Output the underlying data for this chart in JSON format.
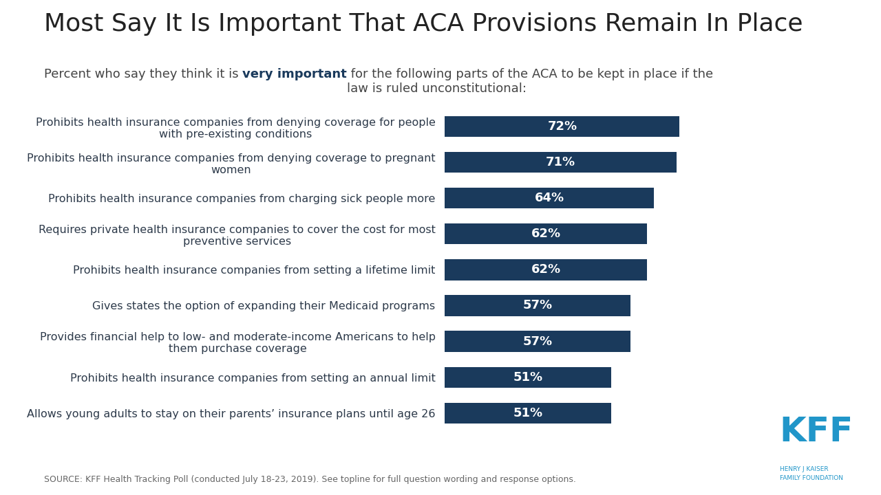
{
  "title": "Most Say It Is Important That ACA Provisions Remain In Place",
  "subtitle_plain": "Percent who say they think it is ",
  "subtitle_bold": "very important",
  "subtitle_rest": " for the following parts of the ACA to be kept in place if the\nlaw is ruled unconstitutional:",
  "categories": [
    "Prohibits health insurance companies from denying coverage for people\nwith pre-existing conditions",
    "Prohibits health insurance companies from denying coverage to pregnant\nwomen",
    "Prohibits health insurance companies from charging sick people more",
    "Requires private health insurance companies to cover the cost for most\npreventive services",
    "Prohibits health insurance companies from setting a lifetime limit",
    "Gives states the option of expanding their Medicaid programs",
    "Provides financial help to low- and moderate-income Americans to help\nthem purchase coverage",
    "Prohibits health insurance companies from setting an annual limit",
    "Allows young adults to stay on their parents’ insurance plans until age 26"
  ],
  "values": [
    72,
    71,
    64,
    62,
    62,
    57,
    57,
    51,
    51
  ],
  "bar_color": "#1a3a5c",
  "text_color": "#2d3a4a",
  "label_color": "#ffffff",
  "background_color": "#ffffff",
  "source_text": "SOURCE: KFF Health Tracking Poll (conducted July 18-23, 2019). See topline for full question wording and response options.",
  "xlim": [
    0,
    100
  ],
  "bar_height": 0.58,
  "title_fontsize": 26,
  "subtitle_fontsize": 13,
  "category_fontsize": 11.5,
  "value_fontsize": 13,
  "source_fontsize": 9,
  "kff_color": "#2196c9",
  "subtitle_bold_color": "#1a3a5c"
}
